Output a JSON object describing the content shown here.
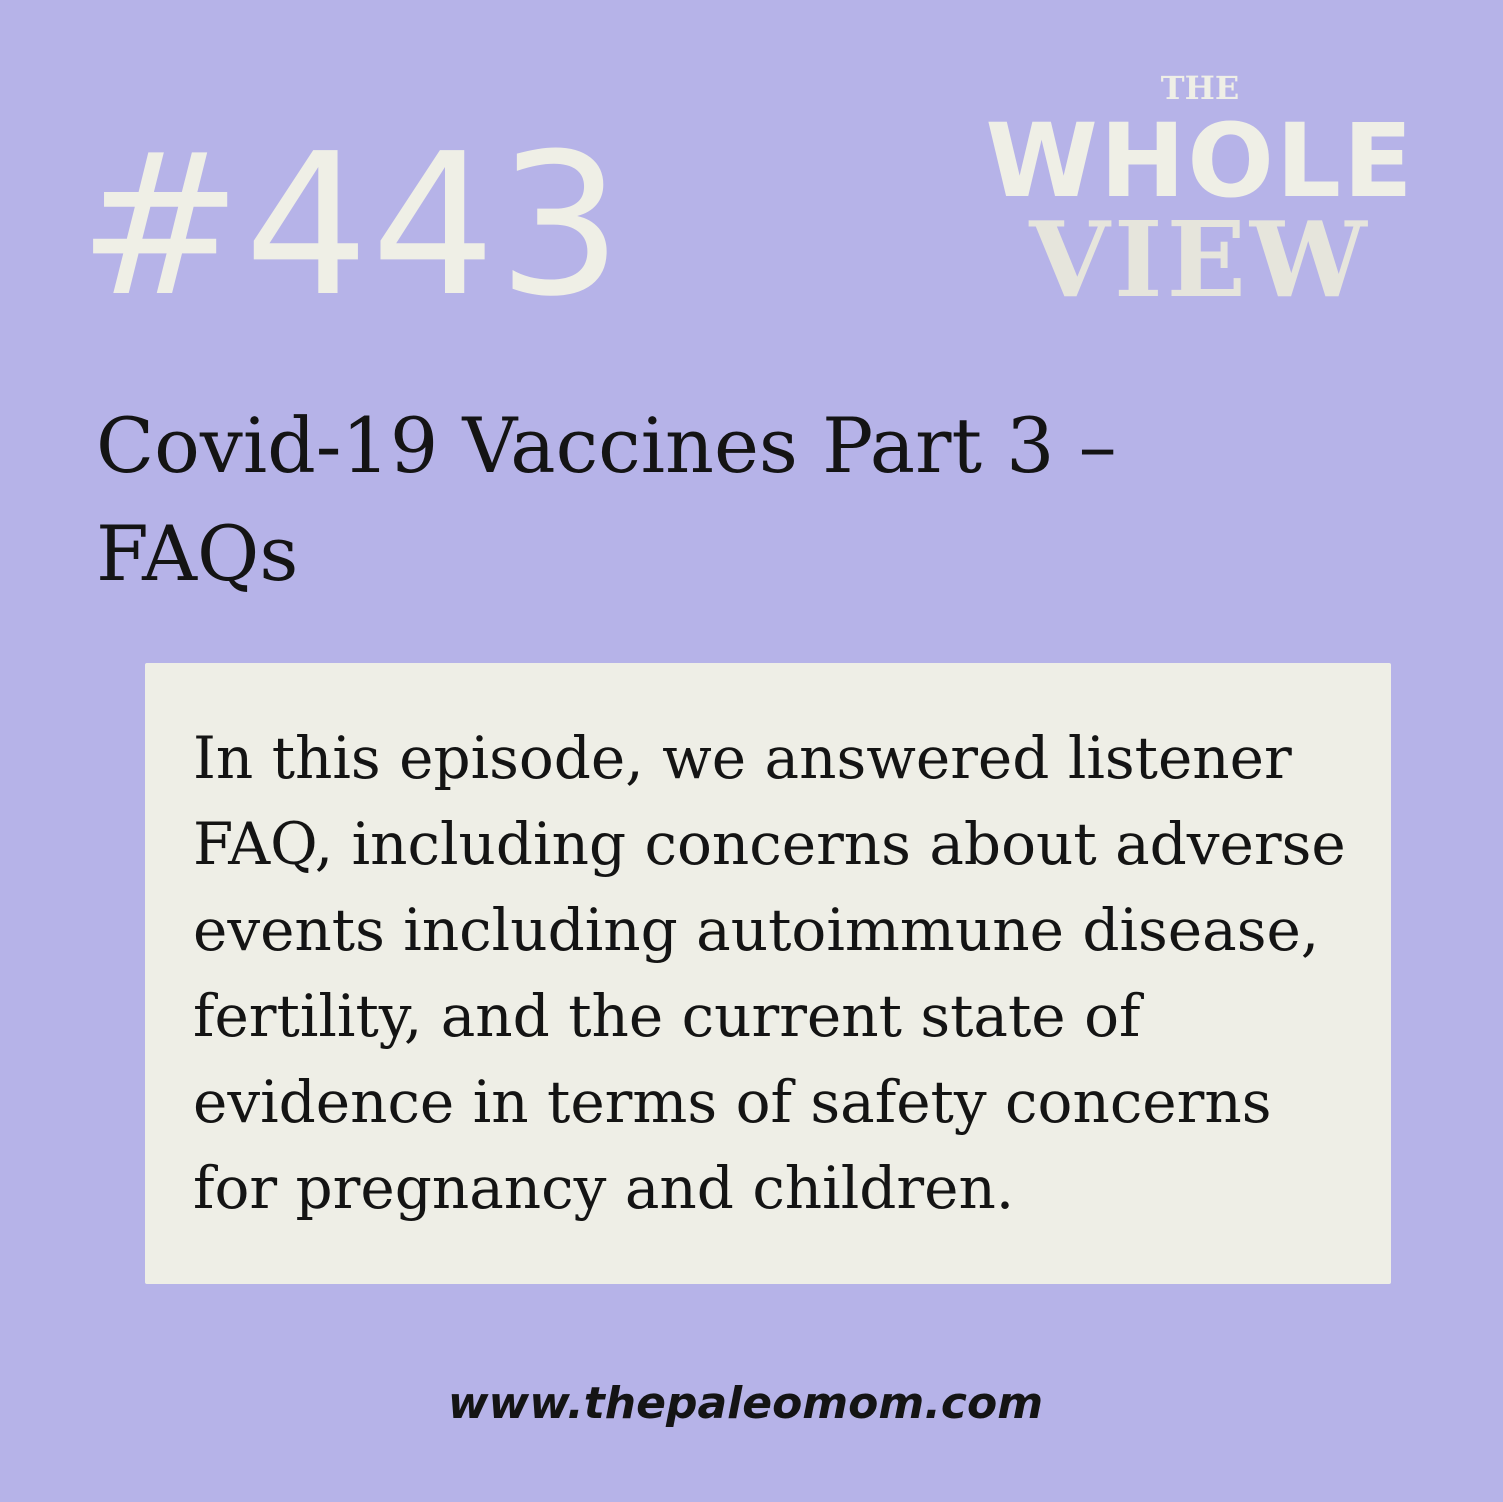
{
  "episode": {
    "number": "#443"
  },
  "logo": {
    "line1": "THE",
    "line2": "WHOLE",
    "line3": "VIEW"
  },
  "title": {
    "line1": "Covid-19 Vaccines Part 3 –",
    "line2": "FAQs"
  },
  "description": {
    "text": "In this episode, we answered listener FAQ, including concerns about adverse events including autoimmune disease, fertility, and the current state of evidence in terms of safety concerns for pregnancy and children."
  },
  "footer": {
    "website": "www.thepaleomom.com"
  },
  "colors": {
    "background": "#b6b3e8",
    "card": "#eeeee6",
    "light_text": "#efefe6",
    "dark_text": "#141414"
  }
}
